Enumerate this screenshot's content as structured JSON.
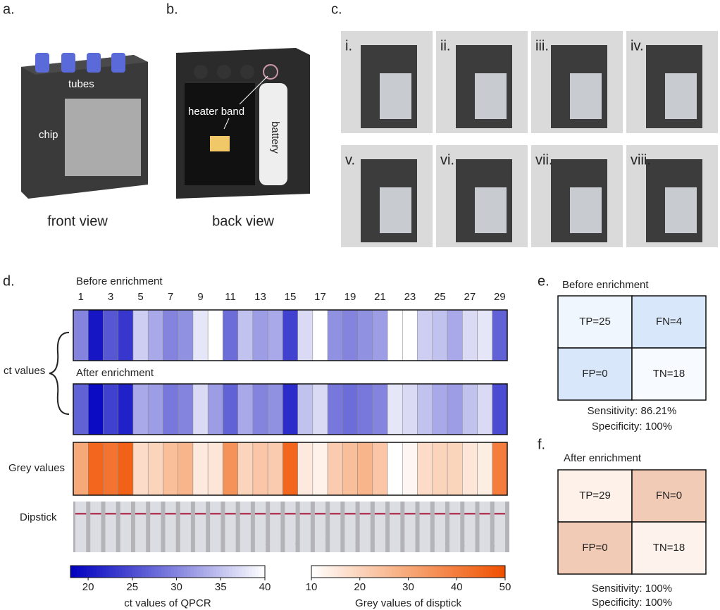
{
  "panels": {
    "a": {
      "label": "a.",
      "tubes": "tubes",
      "chip": "chip",
      "caption": "front view"
    },
    "b": {
      "label": "b.",
      "heater": "heater band",
      "battery": "battery",
      "caption": "back view"
    },
    "c": {
      "label": "c.",
      "steps": [
        "i.",
        "ii.",
        "iii.",
        "iv.",
        "v.",
        "vi.",
        "vii.",
        "viii."
      ]
    },
    "d": {
      "label": "d.",
      "before_title": "Before enrichment",
      "after_title": "After enrichment",
      "column_labels": [
        1,
        3,
        5,
        7,
        9,
        11,
        13,
        15,
        17,
        19,
        21,
        23,
        25,
        27,
        29
      ],
      "ct_label": "ct values",
      "grey_label": "Grey values",
      "dipstick_label": "Dipstick",
      "ct_before": [
        30,
        20,
        26,
        23,
        36,
        33,
        30,
        31,
        38,
        40,
        28,
        35,
        32,
        33,
        24,
        37,
        40,
        31,
        30,
        31,
        32,
        40,
        40,
        36,
        35,
        33,
        37,
        38,
        27
      ],
      "ct_after": [
        27,
        19,
        24,
        21,
        33,
        32,
        29,
        30,
        37,
        32,
        27,
        33,
        30,
        31,
        22,
        35,
        37,
        29,
        28,
        29,
        30,
        38,
        37,
        35,
        33,
        32,
        35,
        37,
        25
      ],
      "grey": [
        30,
        45,
        42,
        46,
        18,
        20,
        25,
        27,
        15,
        16,
        35,
        20,
        23,
        22,
        45,
        15,
        13,
        22,
        25,
        27,
        23,
        10,
        12,
        18,
        20,
        20,
        16,
        14,
        40
      ],
      "ct_colorbar": {
        "title": "ct values of QPCR",
        "lim": [
          18,
          40
        ],
        "ticks": [
          20,
          25,
          30,
          35,
          40
        ],
        "colors": [
          "#0000c0",
          "#7878dc",
          "#ffffff"
        ]
      },
      "grey_colorbar": {
        "title": "Grey values of disptick",
        "lim": [
          10,
          50
        ],
        "ticks": [
          10,
          20,
          30,
          40,
          50
        ],
        "colors": [
          "#ffffff",
          "#f7a878",
          "#f05000"
        ]
      }
    },
    "e": {
      "label": "e.",
      "title": "Before enrichment",
      "cells": [
        {
          "text": "TP=25",
          "color": "#f0f6fd"
        },
        {
          "text": "FN=4",
          "color": "#d8e8fa"
        },
        {
          "text": "FP=0",
          "color": "#d8e8fa"
        },
        {
          "text": "TN=18",
          "color": "#f7fafe"
        }
      ],
      "sensitivity": "Sensitivity: 86.21%",
      "specificity": "Specificity: 100%"
    },
    "f": {
      "label": "f.",
      "title": "After enrichment",
      "cells": [
        {
          "text": "TP=29",
          "color": "#fdf1e9"
        },
        {
          "text": "FN=0",
          "color": "#f2cbb6"
        },
        {
          "text": "FP=0",
          "color": "#f2cbb6"
        },
        {
          "text": "TN=18",
          "color": "#fdf3ec"
        }
      ],
      "sensitivity": "Sensitivity: 100%",
      "specificity": "Specificity: 100%"
    }
  }
}
